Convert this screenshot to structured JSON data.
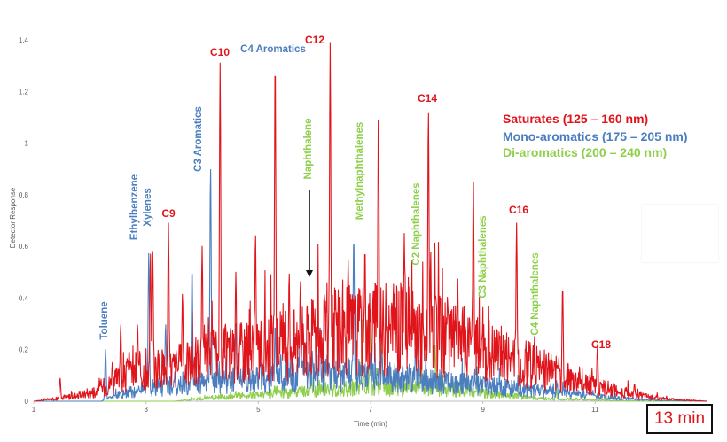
{
  "chart_data": {
    "type": "line",
    "title": "",
    "xlabel": "Time (min)",
    "ylabel": "Detector Response",
    "xlim": [
      1,
      13
    ],
    "ylim": [
      0,
      1.4
    ],
    "x_ticks": [
      "1",
      "3",
      "5",
      "7",
      "9",
      "11"
    ],
    "y_ticks": [
      "0",
      "0.2",
      "0.4",
      "0.6",
      "0.8",
      "1",
      "1.2",
      "1.4"
    ],
    "legend": [
      {
        "label": "Saturates (125 – 160 nm)",
        "color": "#e0141b"
      },
      {
        "label": "Mono-aromatics (175 – 205 nm)",
        "color": "#4a7ebf"
      },
      {
        "label": "Di-aromatics (200 – 240 nm)",
        "color": "#8fcf4b"
      }
    ],
    "series": [
      {
        "name": "Saturates",
        "color": "#e0141b",
        "baseline": [
          [
            1,
            0
          ],
          [
            1.4,
            0.01
          ],
          [
            2.0,
            0.03
          ],
          [
            2.3,
            0.06
          ],
          [
            2.7,
            0.1
          ],
          [
            3.0,
            0.12
          ],
          [
            3.5,
            0.13
          ],
          [
            4.0,
            0.16
          ],
          [
            4.5,
            0.19
          ],
          [
            5.0,
            0.2
          ],
          [
            5.5,
            0.22
          ],
          [
            6.0,
            0.24
          ],
          [
            6.5,
            0.27
          ],
          [
            7.0,
            0.28
          ],
          [
            7.5,
            0.28
          ],
          [
            8.0,
            0.26
          ],
          [
            8.5,
            0.24
          ],
          [
            9.0,
            0.2
          ],
          [
            9.5,
            0.17
          ],
          [
            10.0,
            0.13
          ],
          [
            10.5,
            0.09
          ],
          [
            11.0,
            0.06
          ],
          [
            11.5,
            0.035
          ],
          [
            12.0,
            0.015
          ],
          [
            12.5,
            0.005
          ],
          [
            13.0,
            0
          ]
        ],
        "peaks": [
          [
            1.47,
            0.09
          ],
          [
            2.15,
            0.06
          ],
          [
            2.4,
            0.15
          ],
          [
            2.55,
            0.3
          ],
          [
            2.7,
            0.2
          ],
          [
            2.85,
            0.3
          ],
          [
            3.08,
            0.57
          ],
          [
            3.12,
            0.58
          ],
          [
            3.4,
            0.69
          ],
          [
            3.65,
            0.42
          ],
          [
            4.0,
            0.6
          ],
          [
            4.32,
            1.31
          ],
          [
            4.6,
            0.5
          ],
          [
            4.95,
            0.65
          ],
          [
            5.3,
            1.33
          ],
          [
            5.55,
            0.5
          ],
          [
            5.75,
            0.47
          ],
          [
            6.28,
            1.39
          ],
          [
            6.6,
            0.55
          ],
          [
            6.9,
            0.6
          ],
          [
            7.14,
            1.15
          ],
          [
            7.6,
            0.65
          ],
          [
            8.03,
            1.13
          ],
          [
            8.55,
            0.48
          ],
          [
            8.83,
            0.86
          ],
          [
            9.6,
            0.69
          ],
          [
            10.42,
            0.45
          ],
          [
            11.04,
            0.22
          ],
          [
            11.7,
            0.07
          ]
        ]
      },
      {
        "name": "Mono-aromatics",
        "color": "#4a7ebf",
        "baseline": [
          [
            1,
            0
          ],
          [
            2.2,
            0
          ],
          [
            2.6,
            0.03
          ],
          [
            3.0,
            0.05
          ],
          [
            3.5,
            0.06
          ],
          [
            4.0,
            0.07
          ],
          [
            4.5,
            0.08
          ],
          [
            5.0,
            0.09
          ],
          [
            5.5,
            0.1
          ],
          [
            6.0,
            0.11
          ],
          [
            6.5,
            0.11
          ],
          [
            7.0,
            0.1
          ],
          [
            7.5,
            0.09
          ],
          [
            8.0,
            0.08
          ],
          [
            8.5,
            0.07
          ],
          [
            9.0,
            0.06
          ],
          [
            9.5,
            0.05
          ],
          [
            10.0,
            0.04
          ],
          [
            10.5,
            0.03
          ],
          [
            11.0,
            0.02
          ],
          [
            11.5,
            0.01
          ],
          [
            12.0,
            0.004
          ],
          [
            13.0,
            0
          ]
        ],
        "peaks": [
          [
            2.28,
            0.2
          ],
          [
            3.05,
            0.58
          ],
          [
            3.35,
            0.3
          ],
          [
            3.82,
            0.52
          ],
          [
            4.15,
            0.91
          ],
          [
            4.6,
            0.3
          ],
          [
            5.3,
            0.3
          ],
          [
            5.75,
            0.45
          ],
          [
            6.1,
            0.3
          ],
          [
            6.7,
            0.64
          ],
          [
            7.2,
            0.2
          ],
          [
            7.8,
            0.2
          ],
          [
            8.8,
            0.1
          ]
        ]
      },
      {
        "name": "Di-aromatics",
        "color": "#8fcf4b",
        "baseline": [
          [
            1,
            0
          ],
          [
            3.5,
            0
          ],
          [
            4.5,
            0.02
          ],
          [
            5.5,
            0.03
          ],
          [
            6.5,
            0.05
          ],
          [
            7.0,
            0.06
          ],
          [
            7.5,
            0.05
          ],
          [
            8.0,
            0.05
          ],
          [
            8.5,
            0.04
          ],
          [
            9.0,
            0.03
          ],
          [
            9.5,
            0.02
          ],
          [
            10.0,
            0.01
          ],
          [
            11.0,
            0.004
          ],
          [
            12.0,
            0
          ],
          [
            13.0,
            0
          ]
        ],
        "peaks": [
          [
            5.95,
            0.1
          ],
          [
            6.85,
            0.32
          ],
          [
            7.0,
            0.3
          ],
          [
            7.2,
            0.25
          ],
          [
            7.9,
            0.2
          ],
          [
            8.15,
            0.22
          ],
          [
            8.9,
            0.12
          ],
          [
            9.65,
            0.1
          ],
          [
            10.3,
            0.06
          ]
        ]
      }
    ],
    "annotations": [
      {
        "text": "C10",
        "color": "#e0141b"
      },
      {
        "text": "C4 Aromatics",
        "color": "#4a7ebf"
      },
      {
        "text": "C12",
        "color": "#e0141b"
      },
      {
        "text": "C14",
        "color": "#e0141b"
      },
      {
        "text": "C9",
        "color": "#e0141b"
      },
      {
        "text": "C16",
        "color": "#e0141b"
      },
      {
        "text": "C18",
        "color": "#e0141b"
      },
      {
        "text": "Toluene",
        "color": "#4a7ebf"
      },
      {
        "text": "Ethylbenzene",
        "color": "#4a7ebf"
      },
      {
        "text": "Xylenes",
        "color": "#4a7ebf"
      },
      {
        "text": "C3 Aromatics",
        "color": "#4a7ebf"
      },
      {
        "text": "Naphthalene",
        "color": "#8fcf4b"
      },
      {
        "text": "Methylnaphthalenes",
        "color": "#8fcf4b"
      },
      {
        "text": "C2 Naphthalenes",
        "color": "#8fcf4b"
      },
      {
        "text": "C3 Naphthalenes",
        "color": "#8fcf4b"
      },
      {
        "text": "C4 Naphthalenes",
        "color": "#8fcf4b"
      }
    ]
  },
  "time_badge": "13 min"
}
